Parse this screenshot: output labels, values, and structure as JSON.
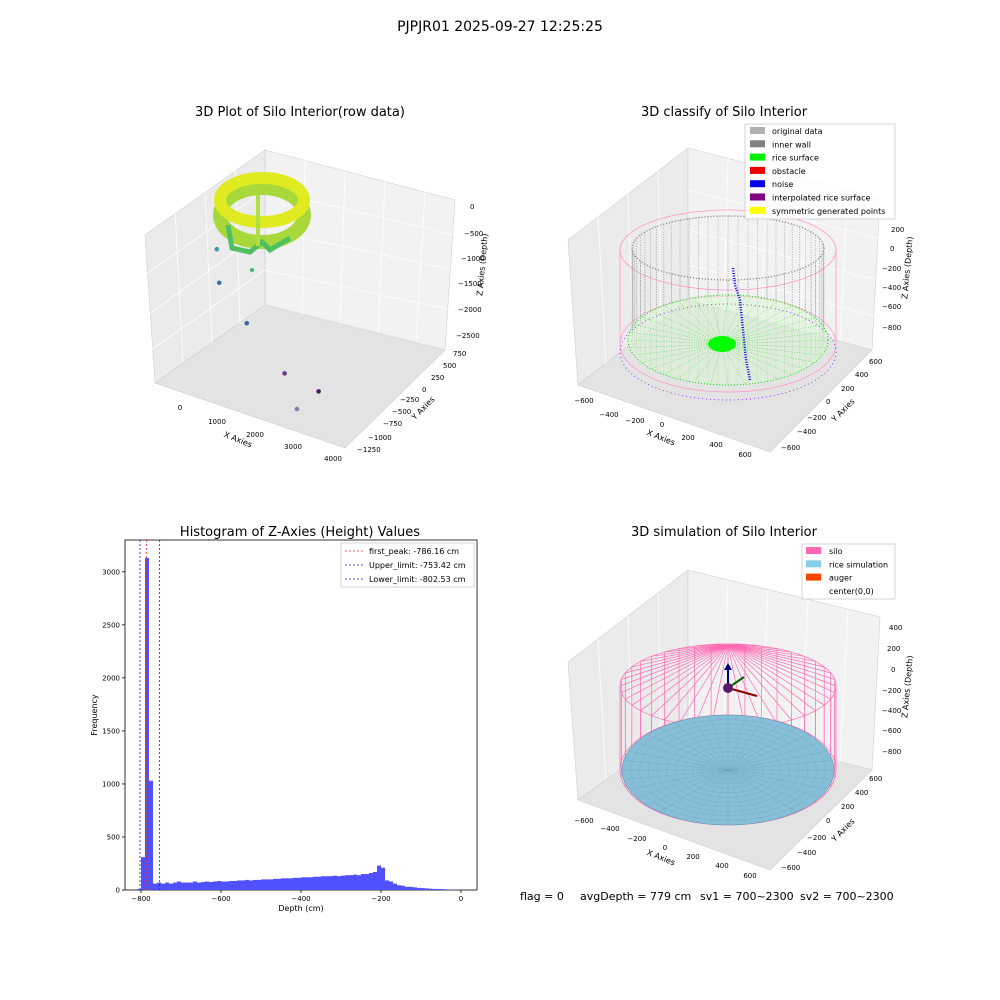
{
  "figure": {
    "suptitle": "PJPJR01 2025-09-27 12:25:25",
    "status": {
      "flag": "flag = 0",
      "avg": "avgDepth = 779 cm",
      "sv1": "sv1 = 700~2300",
      "sv2": "sv2 = 700~2300"
    }
  },
  "chart_data": [
    {
      "type": "scatter",
      "projection": "3d",
      "title": "3D Plot of Silo Interior(row data)",
      "xlabel": "X Axies",
      "ylabel": "Y Axies",
      "zlabel": "Z Axies (Depth)",
      "x_ticks": [
        "0",
        "1000",
        "2000",
        "3000",
        "4000"
      ],
      "y_ticks": [
        "750",
        "500",
        "250",
        "0",
        "−250",
        "−500",
        "−750",
        "−1000",
        "−1250"
      ],
      "z_ticks": [
        "0",
        "−500",
        "−1000",
        "−1500",
        "−2000",
        "−2500"
      ],
      "outlier_points": [
        {
          "x": 1100,
          "y": 0,
          "z": -1300
        },
        {
          "x": 900,
          "y": -200,
          "z": -1700
        },
        {
          "x": 1100,
          "y": -600,
          "z": -2100
        },
        {
          "x": 1700,
          "y": -900,
          "z": -2500
        },
        {
          "x": 2200,
          "y": -1200,
          "z": -2600
        },
        {
          "x": 4000,
          "y": 600,
          "z": -2200
        }
      ],
      "colormap": "viridis"
    },
    {
      "type": "scatter",
      "projection": "3d",
      "title": "3D classify of Silo Interior",
      "xlabel": "X Axies",
      "ylabel": "Y Axies",
      "zlabel": "Z Axies (Depth)",
      "x_ticks": [
        "−600",
        "−400",
        "−200",
        "0",
        "200",
        "400",
        "600"
      ],
      "y_ticks": [
        "600",
        "400",
        "200",
        "0",
        "−200",
        "−400",
        "−600"
      ],
      "z_ticks": [
        "200",
        "0",
        "−200",
        "−400",
        "−600",
        "−800"
      ],
      "legend": [
        {
          "label": "original data",
          "color": "#b0b0b0"
        },
        {
          "label": "inner wall",
          "color": "#808080"
        },
        {
          "label": "rice surface",
          "color": "#00ee00"
        },
        {
          "label": "obstacle",
          "color": "#ee0000"
        },
        {
          "label": "noise",
          "color": "#0000ee"
        },
        {
          "label": "interpolated rice surface",
          "color": "#800080"
        },
        {
          "label": "symmetric generated points",
          "color": "#ffff00"
        }
      ],
      "legend_loc": "top-right"
    },
    {
      "type": "bar",
      "title": "Histogram of Z-Axies (Height) Values",
      "xlabel": "Depth (cm)",
      "ylabel": "Frequency",
      "bin_width": 10,
      "xlim": [
        -840,
        40
      ],
      "ylim": [
        0,
        3300
      ],
      "x_ticks": [
        -800,
        -600,
        -400,
        -200,
        0
      ],
      "y_ticks": [
        0,
        500,
        1000,
        1500,
        2000,
        2500,
        3000
      ],
      "bar_color": "#5050ff",
      "bins_start": [
        -810,
        -800,
        -790,
        -780,
        -770,
        -760,
        -750,
        -740,
        -730,
        -720,
        -710,
        -700,
        -690,
        -680,
        -670,
        -660,
        -650,
        -640,
        -630,
        -620,
        -610,
        -600,
        -590,
        -580,
        -570,
        -560,
        -550,
        -540,
        -530,
        -520,
        -510,
        -500,
        -490,
        -480,
        -470,
        -460,
        -450,
        -440,
        -430,
        -420,
        -410,
        -400,
        -390,
        -380,
        -370,
        -360,
        -350,
        -340,
        -330,
        -320,
        -310,
        -300,
        -290,
        -280,
        -270,
        -260,
        -250,
        -240,
        -230,
        -220,
        -210,
        -200,
        -190,
        -180,
        -170,
        -160,
        -150,
        -140,
        -130,
        -120,
        -110,
        -100,
        -90,
        -80,
        -70,
        -60,
        -50,
        -40,
        -30,
        -20,
        -10
      ],
      "values": [
        10,
        310,
        3130,
        1030,
        60,
        70,
        60,
        70,
        60,
        70,
        80,
        70,
        70,
        70,
        80,
        70,
        75,
        80,
        75,
        80,
        85,
        80,
        80,
        85,
        85,
        90,
        90,
        95,
        90,
        95,
        95,
        100,
        100,
        100,
        105,
        105,
        110,
        110,
        110,
        115,
        115,
        120,
        120,
        120,
        125,
        125,
        130,
        130,
        130,
        135,
        130,
        135,
        140,
        140,
        145,
        140,
        150,
        150,
        160,
        170,
        230,
        210,
        90,
        80,
        60,
        45,
        40,
        30,
        30,
        25,
        20,
        18,
        15,
        12,
        10,
        10,
        8,
        6,
        4,
        2,
        1
      ],
      "vlines": [
        {
          "x": -786.16,
          "label": "first_peak: -786.16 cm",
          "color": "#e03030"
        },
        {
          "x": -753.42,
          "label": "Upper_limit: -753.42 cm",
          "color": "#2020c0"
        },
        {
          "x": -802.53,
          "label": "Lower_limit: -802.53 cm",
          "color": "#2020c0"
        }
      ],
      "legend_loc": "top-right"
    },
    {
      "type": "surface",
      "projection": "3d",
      "title": "3D simulation of Silo Interior",
      "xlabel": "X Axies",
      "ylabel": "Y Axies",
      "zlabel": "Z Axies (Depth)",
      "x_ticks": [
        "−600",
        "−400",
        "−200",
        "0",
        "200",
        "400",
        "600"
      ],
      "y_ticks": [
        "600",
        "400",
        "200",
        "0",
        "−200",
        "−400",
        "−600"
      ],
      "z_ticks": [
        "400",
        "200",
        "0",
        "−200",
        "−400",
        "−600",
        "−800"
      ],
      "legend": [
        {
          "label": "silo",
          "color": "#ff69b4"
        },
        {
          "label": "rice simulation",
          "color": "#87ceeb"
        },
        {
          "label": "auger",
          "color": "#ff4500"
        },
        {
          "label": "center(0,0)",
          "color": ""
        }
      ],
      "legend_loc": "top-right"
    }
  ]
}
